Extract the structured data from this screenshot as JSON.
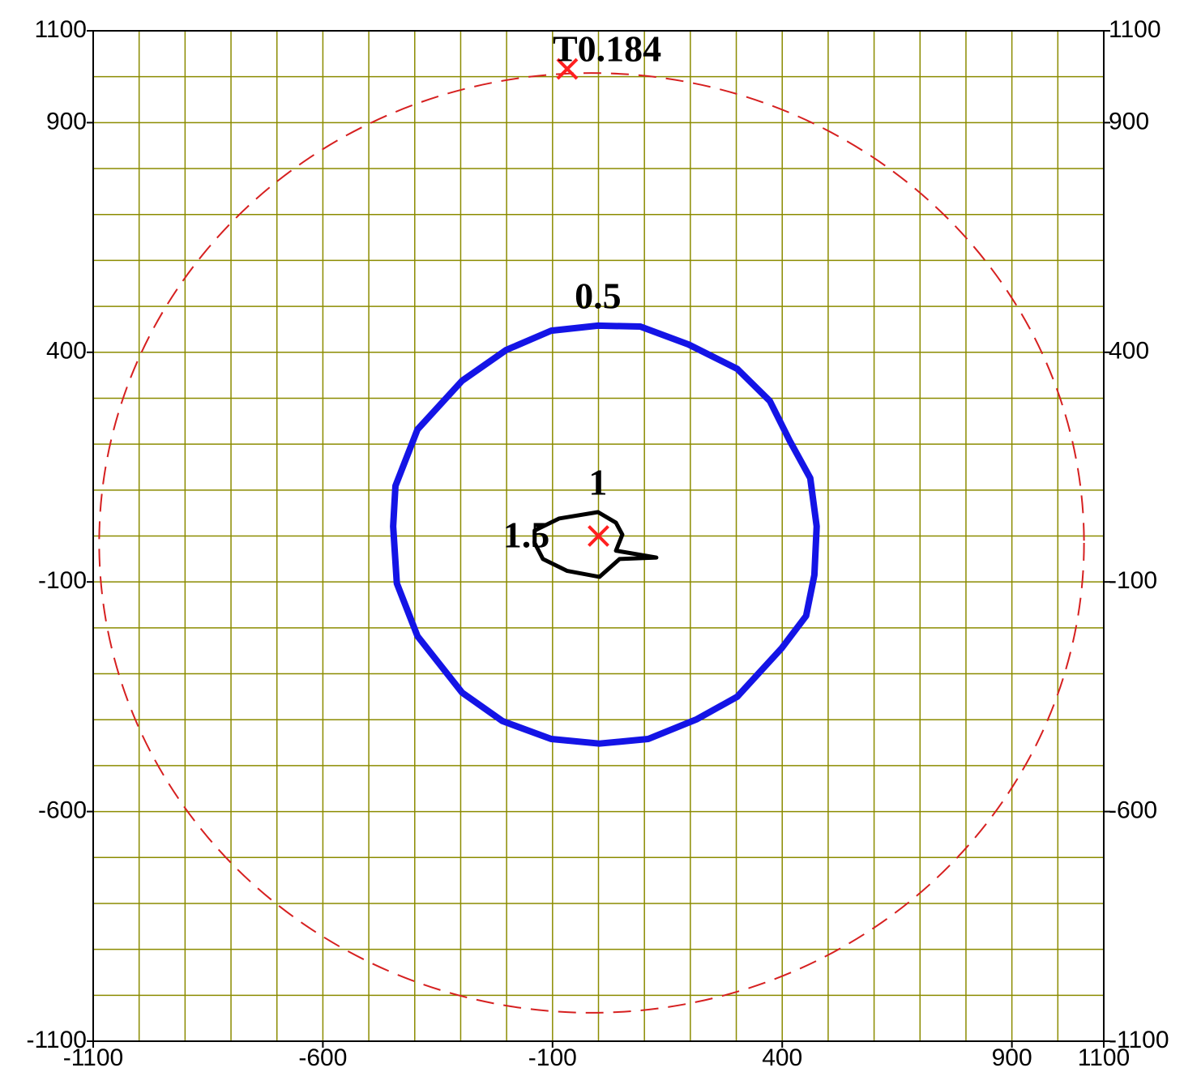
{
  "chart_data": {
    "type": "contour",
    "xlim": [
      -1100,
      1100
    ],
    "ylim": [
      -1100,
      1100
    ],
    "xticks": [
      -1100,
      -600,
      -100,
      400,
      900,
      1100
    ],
    "yticks": [
      -1100,
      -600,
      -100,
      400,
      900,
      1100
    ],
    "grid": true,
    "grid_step": 100,
    "grid_color": "#8b8b00",
    "ellipse": {
      "cx": -15,
      "cy": -15,
      "rx": 1072,
      "ry": 1023,
      "color": "#d62020"
    },
    "contours": [
      {
        "label": "0.5",
        "color": "#1414e6",
        "x": [
          -1,
          91,
          196,
          302,
          373,
          417,
          461,
          475,
          470,
          452,
          399,
          302,
          214,
          108,
          2,
          -103,
          -209,
          -297,
          -394,
          -439,
          -447,
          -442,
          -394,
          -297,
          -201,
          -103
        ],
        "y": [
          458,
          456,
          417,
          364,
          294,
          206,
          126,
          21,
          -85,
          -174,
          -244,
          -350,
          -399,
          -442,
          -452,
          -442,
          -403,
          -341,
          -218,
          -103,
          21,
          109,
          232,
          338,
          405,
          447
        ]
      },
      {
        "label": "1",
        "color": "#000000",
        "x": [
          -139,
          -86,
          -1,
          38,
          52,
          38,
          126,
          46,
          2,
          -68,
          -121,
          -139
        ],
        "y": [
          12,
          38,
          52,
          29,
          3,
          -32,
          -47,
          -50,
          -89,
          -76,
          -50,
          -15
        ]
      }
    ],
    "annotations": [
      {
        "text": "1.5",
        "x": -157,
        "y": -6
      }
    ],
    "markers": [
      {
        "x": 0,
        "y": 0,
        "color": "#ff2020"
      },
      {
        "x": -68,
        "y": 1017,
        "color": "#ff2020",
        "label": "T0.184"
      }
    ]
  }
}
